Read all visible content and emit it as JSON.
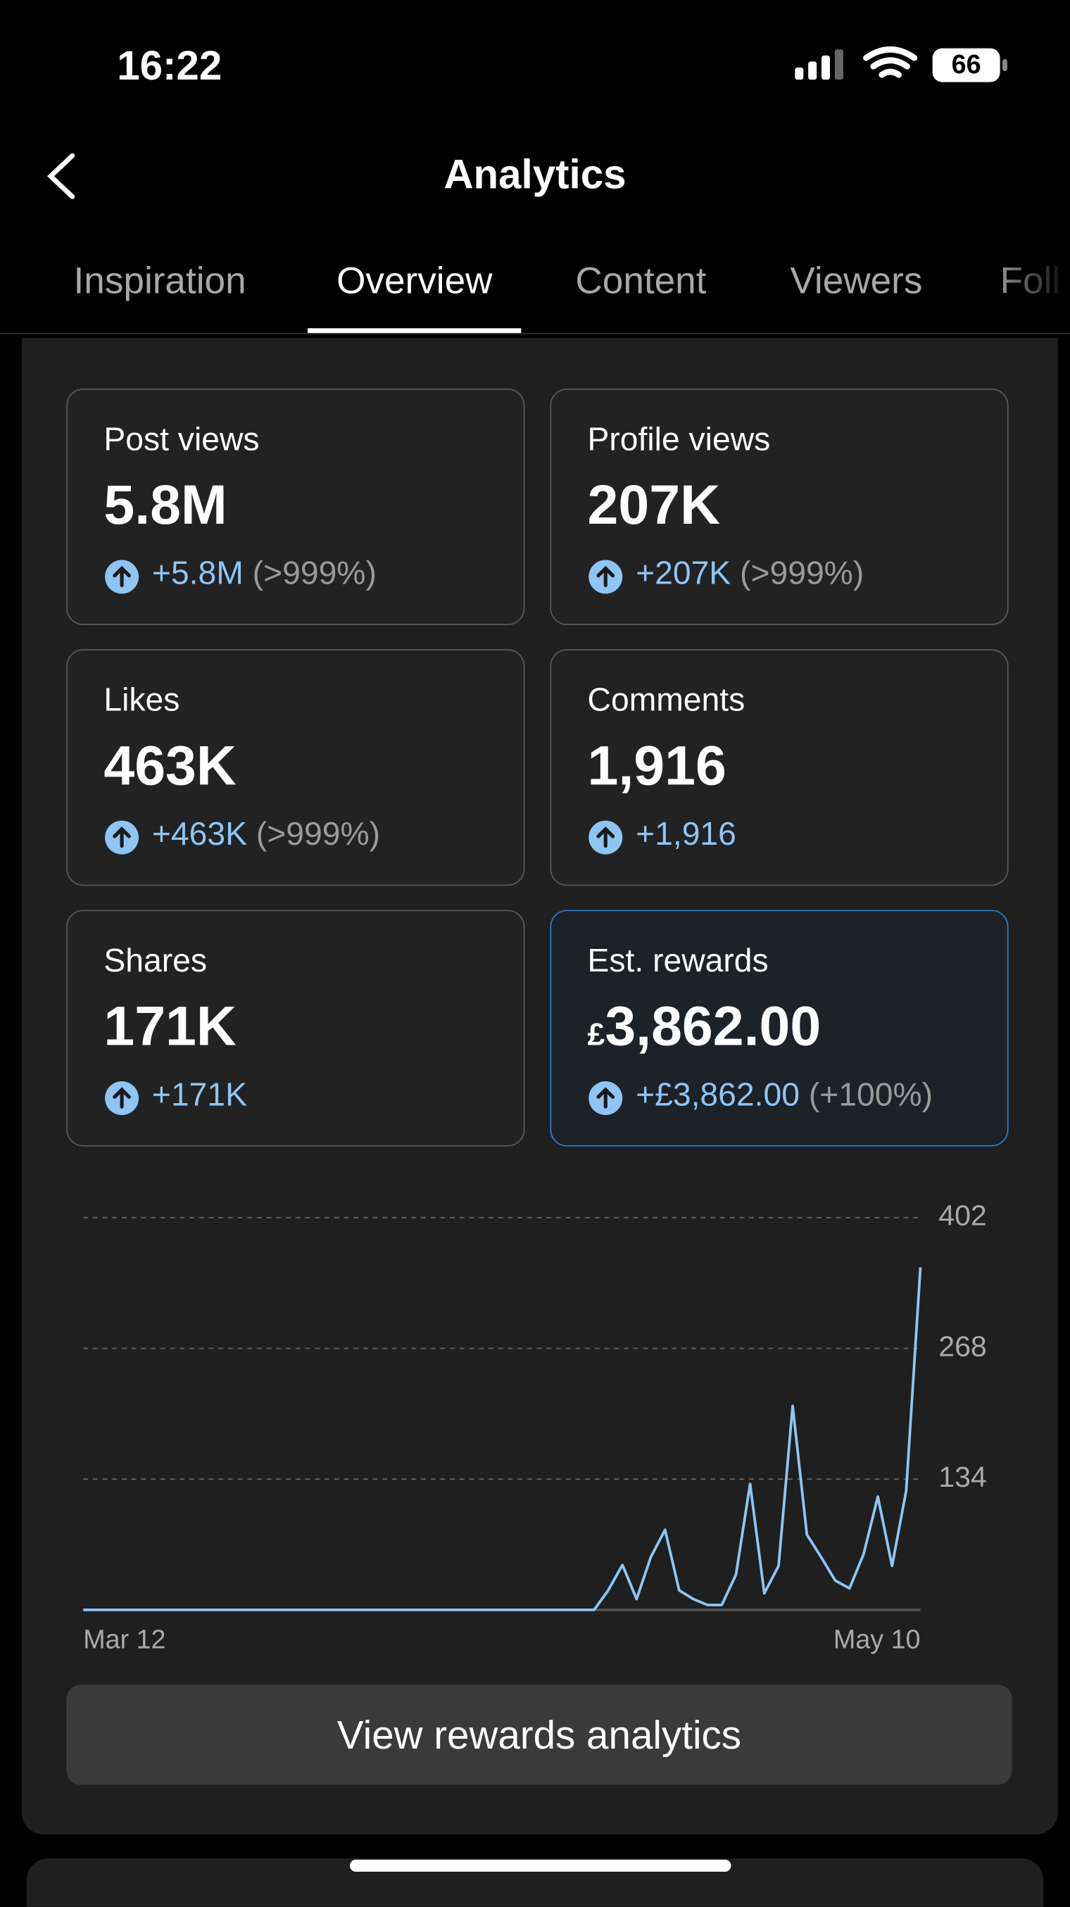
{
  "status": {
    "time": "16:22",
    "battery": "66"
  },
  "header": {
    "title": "Analytics"
  },
  "tabs": {
    "items": [
      "Inspiration",
      "Overview",
      "Content",
      "Viewers",
      "Foll"
    ],
    "active": 1
  },
  "cards": [
    {
      "label": "Post views",
      "value": "5.8M",
      "change": "+5.8M",
      "percent": "(>999%)"
    },
    {
      "label": "Profile views",
      "value": "207K",
      "change": "+207K",
      "percent": "(>999%)"
    },
    {
      "label": "Likes",
      "value": "463K",
      "change": "+463K",
      "percent": "(>999%)"
    },
    {
      "label": "Comments",
      "value": "1,916",
      "change": "+1,916"
    },
    {
      "label": "Shares",
      "value": "171K",
      "change": "+171K"
    },
    {
      "label": "Est. rewards",
      "currency": "£",
      "value": "3,862.00",
      "change": "+£3,862.00",
      "percent": "(+100%)",
      "highlight": true
    }
  ],
  "chart_data": {
    "type": "line",
    "color": "#8ec5f5",
    "categories": [
      "Mar 12",
      null,
      null,
      null,
      null,
      null,
      null,
      null,
      null,
      null,
      null,
      null,
      null,
      null,
      null,
      null,
      null,
      null,
      null,
      null,
      null,
      null,
      null,
      null,
      null,
      null,
      null,
      null,
      null,
      null,
      null,
      null,
      null,
      null,
      null,
      null,
      null,
      null,
      null,
      null,
      null,
      null,
      null,
      null,
      null,
      null,
      null,
      null,
      null,
      null,
      null,
      null,
      null,
      null,
      null,
      null,
      null,
      null,
      null,
      "May 10"
    ],
    "values": [
      0,
      0,
      0,
      0,
      0,
      0,
      0,
      0,
      0,
      0,
      0,
      0,
      0,
      0,
      0,
      0,
      0,
      0,
      0,
      0,
      0,
      0,
      0,
      0,
      0,
      0,
      0,
      0,
      0,
      0,
      0,
      0,
      0,
      0,
      0,
      0,
      0,
      20,
      46,
      11,
      54,
      82,
      20,
      11,
      5,
      5,
      36,
      129,
      17,
      45,
      209,
      77,
      54,
      30,
      22,
      57,
      116,
      45,
      122,
      351
    ],
    "ylim": [
      0,
      402
    ],
    "yticks": [
      134,
      268,
      402
    ],
    "grid": true
  },
  "button": {
    "label": "View rewards analytics"
  }
}
